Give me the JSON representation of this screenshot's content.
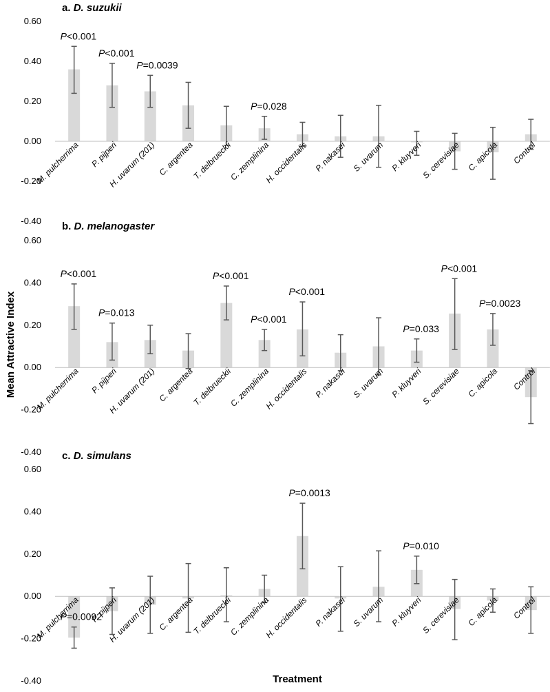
{
  "chart_data": {
    "type": "bar",
    "ylabel": "Mean Attractive Index",
    "xlabel": "Treatment",
    "ylim": [
      -0.4,
      0.6
    ],
    "yticks": [
      "0.60",
      "0.40",
      "0.20",
      "0.00",
      "-0.20",
      "-0.40"
    ],
    "categories": [
      "M. pulcherrima",
      "P. pijperi",
      "H. uvarum (201)",
      "C. argentea",
      "T. delbrueckii",
      "C. zemplinina",
      "H. occidentalis",
      "P. nakasei",
      "S. uvarum",
      "P. kluyveri",
      "S. cerevisiae",
      "C. apicola",
      "Control"
    ],
    "panels": [
      {
        "letter": "a.",
        "species": "D. suzukii",
        "values": [
          0.36,
          0.28,
          0.25,
          0.18,
          0.08,
          0.065,
          0.035,
          0.025,
          0.025,
          -0.005,
          -0.05,
          -0.055,
          0.035
        ],
        "err_low": [
          0.24,
          0.17,
          0.17,
          0.065,
          -0.02,
          0.01,
          -0.025,
          -0.08,
          -0.13,
          -0.07,
          -0.14,
          -0.19,
          -0.04
        ],
        "err_high": [
          0.475,
          0.39,
          0.33,
          0.295,
          0.175,
          0.125,
          0.095,
          0.13,
          0.18,
          0.05,
          0.04,
          0.07,
          0.11
        ],
        "annotations": [
          {
            "index": 0,
            "prefix": "P",
            "text": "<0.001"
          },
          {
            "index": 1,
            "prefix": "P",
            "text": "<0.001"
          },
          {
            "index": 2,
            "prefix": "P",
            "text": "=0.0039"
          },
          {
            "index": 5,
            "prefix": "P",
            "text": "=0.028"
          }
        ]
      },
      {
        "letter": "b.",
        "species": "D. melanogaster",
        "values": [
          0.29,
          0.12,
          0.13,
          0.08,
          0.305,
          0.13,
          0.18,
          0.07,
          0.1,
          0.08,
          0.255,
          0.18,
          -0.14
        ],
        "err_low": [
          0.18,
          0.035,
          0.065,
          -0.005,
          0.225,
          0.08,
          0.055,
          -0.015,
          -0.035,
          0.025,
          0.085,
          0.105,
          -0.265
        ],
        "err_high": [
          0.395,
          0.21,
          0.2,
          0.16,
          0.385,
          0.18,
          0.31,
          0.155,
          0.235,
          0.135,
          0.42,
          0.255,
          -0.015
        ],
        "annotations": [
          {
            "index": 0,
            "prefix": "P",
            "text": "<0.001"
          },
          {
            "index": 1,
            "prefix": "P",
            "text": "=0.013"
          },
          {
            "index": 4,
            "prefix": "P",
            "text": "<0.001"
          },
          {
            "index": 5,
            "prefix": "P",
            "text": "<0.001"
          },
          {
            "index": 6,
            "prefix": "P",
            "text": "<0.001"
          },
          {
            "index": 9,
            "prefix": "P",
            "text": "=0.033"
          },
          {
            "index": 10,
            "prefix": "P",
            "text": "<0.001"
          },
          {
            "index": 11,
            "prefix": "P",
            "text": "=0.0023"
          }
        ]
      },
      {
        "letter": "c.",
        "species": "D. simulans",
        "values": [
          -0.195,
          -0.07,
          -0.04,
          -0.01,
          0.005,
          0.035,
          0.285,
          -0.01,
          0.045,
          0.125,
          -0.06,
          -0.02,
          -0.065
        ],
        "err_low": [
          -0.245,
          -0.18,
          -0.175,
          -0.17,
          -0.12,
          -0.03,
          0.13,
          -0.165,
          -0.12,
          0.06,
          -0.205,
          -0.075,
          -0.175
        ],
        "err_high": [
          -0.145,
          0.04,
          0.095,
          0.155,
          0.135,
          0.1,
          0.44,
          0.14,
          0.215,
          0.19,
          0.08,
          0.035,
          0.045
        ],
        "annotations": [
          {
            "index": 0,
            "prefix": "P",
            "text": "=0.0092"
          },
          {
            "index": 6,
            "prefix": "P",
            "text": "=0.0013"
          },
          {
            "index": 9,
            "prefix": "P",
            "text": "=0.010"
          }
        ]
      }
    ]
  }
}
